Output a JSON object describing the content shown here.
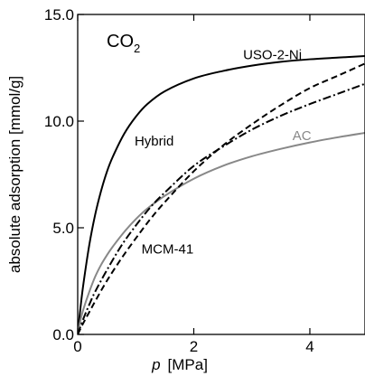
{
  "chart_data": {
    "type": "line",
    "xlabel_symbol": "p",
    "xlabel_unit": "[MPa]",
    "ylabel": "absolute adsorption [mmol/g]",
    "xlim": [
      0,
      4.95
    ],
    "ylim": [
      0,
      15
    ],
    "xticks": [
      {
        "value": 0,
        "label": "0"
      },
      {
        "value": 2,
        "label": "2"
      },
      {
        "value": 4,
        "label": "4"
      }
    ],
    "yticks": [
      {
        "value": 0,
        "label": "0.0"
      },
      {
        "value": 5,
        "label": "5.0"
      },
      {
        "value": 10,
        "label": "10.0"
      },
      {
        "value": 15,
        "label": "15.0"
      }
    ],
    "grid": false,
    "gas_label": {
      "main": "CO",
      "sub": "2"
    },
    "series": [
      {
        "name": "USO-2-Ni",
        "color": "#000000",
        "dash": "solid",
        "label_at": {
          "x": 2.85,
          "y": 12.9
        },
        "x": [
          0,
          0.05,
          0.1,
          0.2,
          0.3,
          0.4,
          0.5,
          0.6,
          0.8,
          1.0,
          1.2,
          1.5,
          2.0,
          2.5,
          3.0,
          3.5,
          4.0,
          4.5,
          4.95
        ],
        "y": [
          0,
          1.3,
          2.4,
          4.2,
          5.6,
          6.7,
          7.6,
          8.3,
          9.4,
          10.2,
          10.8,
          11.4,
          12.0,
          12.35,
          12.6,
          12.78,
          12.9,
          12.98,
          13.05
        ]
      },
      {
        "name": "AC",
        "color": "#888888",
        "dash": "solid",
        "label_at": {
          "x": 3.7,
          "y": 9.1
        },
        "x": [
          0,
          0.05,
          0.1,
          0.2,
          0.3,
          0.4,
          0.5,
          0.6,
          0.8,
          1.0,
          1.2,
          1.5,
          2.0,
          2.5,
          3.0,
          3.5,
          4.0,
          4.5,
          4.95
        ],
        "y": [
          0,
          0.7,
          1.2,
          2.0,
          2.7,
          3.25,
          3.7,
          4.1,
          4.8,
          5.4,
          5.9,
          6.5,
          7.3,
          7.9,
          8.35,
          8.7,
          9.0,
          9.25,
          9.45
        ]
      },
      {
        "name": "Hybrid",
        "color": "#000000",
        "dash": "dashdot",
        "label_at": {
          "x": 0.98,
          "y": 8.85
        },
        "x": [
          0,
          0.1,
          0.2,
          0.3,
          0.5,
          0.75,
          1.0,
          1.25,
          1.5,
          2.0,
          2.5,
          3.0,
          3.5,
          4.0,
          4.5,
          4.95
        ],
        "y": [
          0,
          0.75,
          1.4,
          2.0,
          3.0,
          4.15,
          5.1,
          5.95,
          6.65,
          7.9,
          8.8,
          9.6,
          10.25,
          10.8,
          11.3,
          11.75
        ]
      },
      {
        "name": "MCM-41",
        "color": "#000000",
        "dash": "dashed",
        "label_at": {
          "x": 1.1,
          "y": 3.8
        },
        "x": [
          0,
          0.1,
          0.2,
          0.3,
          0.5,
          0.75,
          1.0,
          1.25,
          1.5,
          2.0,
          2.5,
          3.0,
          3.5,
          4.0,
          4.5,
          4.95
        ],
        "y": [
          0,
          0.55,
          1.05,
          1.55,
          2.5,
          3.55,
          4.5,
          5.4,
          6.2,
          7.65,
          8.85,
          9.85,
          10.75,
          11.55,
          12.15,
          12.7
        ]
      }
    ]
  }
}
